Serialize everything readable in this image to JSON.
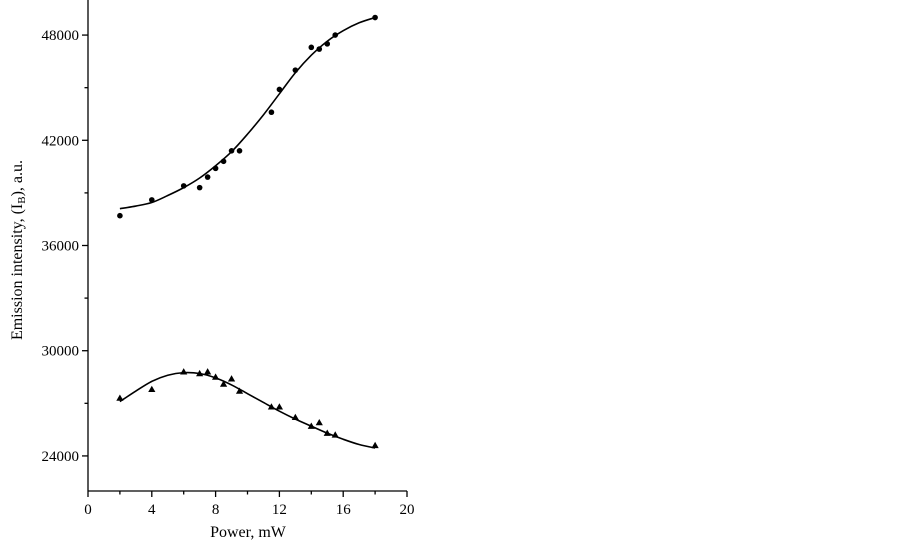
{
  "chart_data": {
    "type": "scatter",
    "title": "",
    "xlabel": "Power, mW",
    "ylabel_parts": {
      "before": "Emission intensity, (I",
      "sub": "B",
      "after": "), a.u."
    },
    "xlim": [
      0,
      20
    ],
    "ylim": [
      22000,
      50000
    ],
    "x_ticks": [
      0,
      4,
      8,
      12,
      16,
      20
    ],
    "x_tick_labels": [
      "0",
      "4",
      "8",
      "12",
      "16",
      "20"
    ],
    "x_minor_ticks": [
      2,
      6,
      10,
      14,
      18
    ],
    "y_ticks": [
      24000,
      30000,
      36000,
      42000,
      48000
    ],
    "y_tick_labels": [
      "24000",
      "30000",
      "36000",
      "42000",
      "48000"
    ],
    "y_minor_ticks": [
      27000,
      33000,
      39000,
      45000
    ],
    "grid": false,
    "legend": "none",
    "series": [
      {
        "marker": "circle",
        "x": [
          2,
          4,
          6,
          7,
          7.5,
          8,
          8.5,
          9,
          9.5,
          11.5,
          12,
          13,
          14,
          14.5,
          15,
          15.5,
          18
        ],
        "y": [
          37700,
          38600,
          39400,
          39300,
          39900,
          40400,
          40800,
          41400,
          41400,
          43600,
          44900,
          46000,
          47300,
          47200,
          47500,
          48000,
          49000
        ],
        "fit_x": [
          2,
          3,
          4,
          5,
          6,
          7,
          8,
          9,
          10,
          11,
          12,
          13,
          14,
          15,
          16,
          17,
          18
        ],
        "fit_y": [
          38100,
          38250,
          38450,
          38850,
          39300,
          39850,
          40550,
          41350,
          42350,
          43450,
          44650,
          45850,
          46850,
          47650,
          48250,
          48700,
          49000
        ]
      },
      {
        "marker": "triangle",
        "x": [
          2,
          4,
          6,
          7,
          7.5,
          8,
          8.5,
          9,
          9.5,
          11.5,
          12,
          13,
          14,
          14.5,
          15,
          15.5,
          18
        ],
        "y": [
          27300,
          27800,
          28800,
          28700,
          28800,
          28500,
          28100,
          28400,
          27700,
          26800,
          26800,
          26200,
          25700,
          25900,
          25300,
          25200,
          24600
        ],
        "fit_x": [
          2,
          3,
          4,
          5,
          6,
          7,
          8,
          9,
          10,
          11,
          12,
          13,
          14,
          15,
          16,
          17,
          18
        ],
        "fit_y": [
          27100,
          27700,
          28250,
          28600,
          28750,
          28700,
          28450,
          28050,
          27550,
          27050,
          26550,
          26100,
          25700,
          25300,
          24950,
          24650,
          24450
        ]
      }
    ]
  }
}
